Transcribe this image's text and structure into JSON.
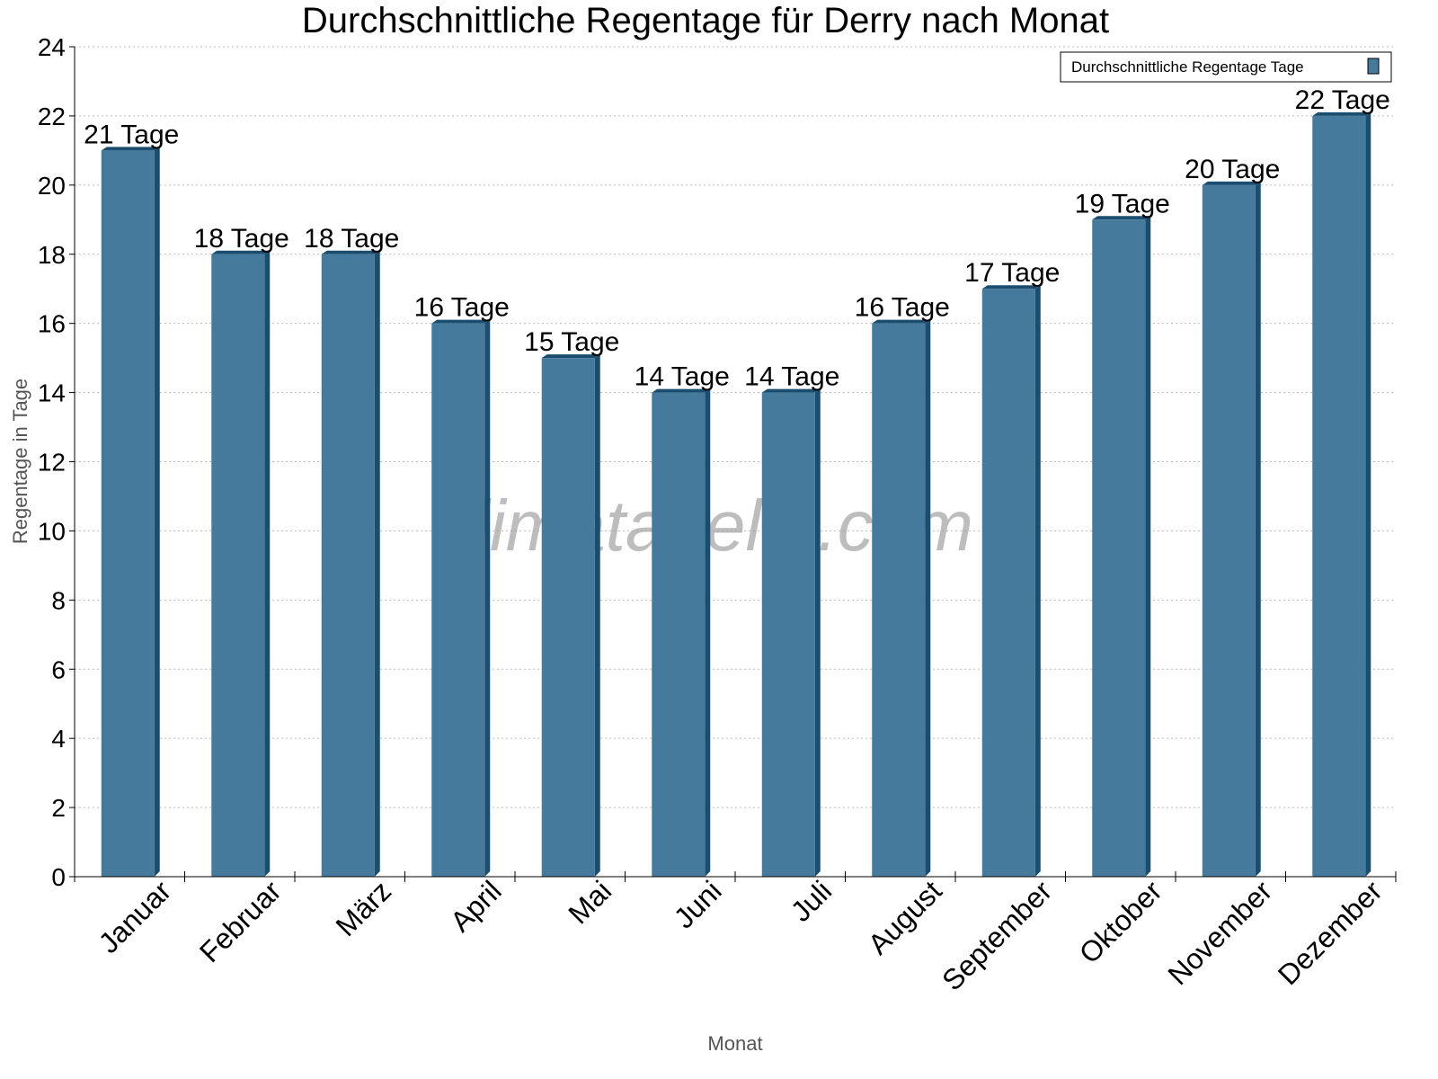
{
  "chart_data": {
    "type": "bar",
    "title": "Durchschnittliche Regentage für Derry nach Monat",
    "xlabel": "Monat",
    "ylabel": "Regentage in Tage",
    "ylim": [
      0,
      24
    ],
    "yticks": [
      0,
      2,
      4,
      6,
      8,
      10,
      12,
      14,
      16,
      18,
      20,
      22,
      24
    ],
    "grid": true,
    "legend_position": "top-right",
    "categories": [
      "Januar",
      "Februar",
      "März",
      "April",
      "Mai",
      "Juni",
      "Juli",
      "August",
      "September",
      "Oktober",
      "November",
      "Dezember"
    ],
    "series": [
      {
        "name": "Durchschnittliche Regentage Tage",
        "values": [
          21,
          18,
          18,
          16,
          15,
          14,
          14,
          16,
          17,
          19,
          20,
          22
        ],
        "data_labels": [
          "21 Tage",
          "18 Tage",
          "18 Tage",
          "16 Tage",
          "15 Tage",
          "14 Tage",
          "14 Tage",
          "16 Tage",
          "17 Tage",
          "19 Tage",
          "20 Tage",
          "22 Tage"
        ],
        "color": "#467a9c",
        "side_color": "#1b4d6e"
      }
    ],
    "watermark": "klimatabelle.com"
  }
}
